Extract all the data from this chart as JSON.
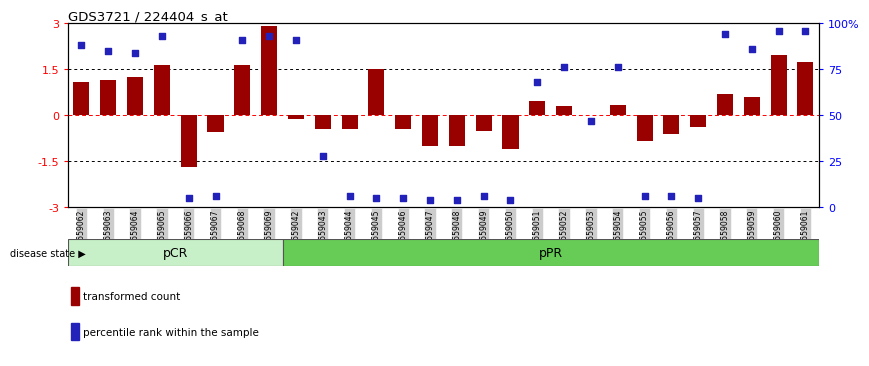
{
  "title": "GDS3721 / 224404_s_at",
  "samples": [
    "GSM559062",
    "GSM559063",
    "GSM559064",
    "GSM559065",
    "GSM559066",
    "GSM559067",
    "GSM559068",
    "GSM559069",
    "GSM559042",
    "GSM559043",
    "GSM559044",
    "GSM559045",
    "GSM559046",
    "GSM559047",
    "GSM559048",
    "GSM559049",
    "GSM559050",
    "GSM559051",
    "GSM559052",
    "GSM559053",
    "GSM559054",
    "GSM559055",
    "GSM559056",
    "GSM559057",
    "GSM559058",
    "GSM559059",
    "GSM559060",
    "GSM559061"
  ],
  "bar_values": [
    1.1,
    1.15,
    1.25,
    1.65,
    -1.7,
    -0.55,
    1.65,
    2.9,
    -0.12,
    -0.45,
    -0.45,
    1.5,
    -0.45,
    -1.0,
    -1.0,
    -0.5,
    -1.1,
    0.45,
    0.3,
    0.0,
    0.35,
    -0.85,
    -0.6,
    -0.38,
    0.7,
    0.6,
    1.95,
    1.75
  ],
  "percentile_values": [
    88,
    85,
    84,
    93,
    5,
    6,
    91,
    93,
    91,
    28,
    6,
    5,
    5,
    4,
    4,
    6,
    4,
    68,
    76,
    47,
    76,
    6,
    6,
    5,
    94,
    86,
    96,
    96
  ],
  "group1_count": 8,
  "group1_label": "pCR",
  "group2_label": "pPR",
  "group1_color": "#c8f0c8",
  "group2_color": "#66cc55",
  "bar_color": "#990000",
  "dot_color": "#2222bb",
  "ylim_left": [
    -3,
    3
  ],
  "ylim_right": [
    0,
    100
  ],
  "yticks_left": [
    -3,
    -1.5,
    0,
    1.5,
    3
  ],
  "yticks_right": [
    0,
    25,
    50,
    75,
    100
  ],
  "disease_state_label": "disease state",
  "legend_items": [
    {
      "label": "transformed count",
      "color": "#990000"
    },
    {
      "label": "percentile rank within the sample",
      "color": "#2222bb"
    }
  ]
}
